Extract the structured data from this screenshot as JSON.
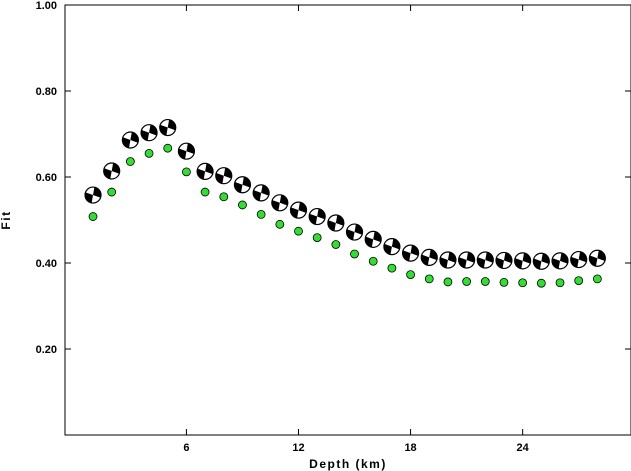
{
  "chart_data": {
    "type": "scatter",
    "title": "",
    "xlabel": "Depth (km)",
    "ylabel": "Fit",
    "xlim": [
      -0.5,
      29.8
    ],
    "ylim": [
      0.0,
      1.0
    ],
    "x_ticks": [
      6,
      12,
      18,
      24
    ],
    "x_tick_labels": [
      "6",
      "12",
      "18",
      "24"
    ],
    "y_ticks": [
      0.2,
      0.4,
      0.6,
      0.8,
      1.0
    ],
    "y_tick_labels": [
      "0.20",
      "0.40",
      "0.60",
      "0.80",
      "1.00"
    ],
    "grid": false,
    "legend": "none",
    "series": [
      {
        "marker": "focal-mechanism-beachball",
        "color": "#000000",
        "x": [
          1,
          2,
          3,
          4,
          5,
          6,
          7,
          8,
          9,
          10,
          11,
          12,
          13,
          14,
          15,
          16,
          17,
          18,
          19,
          20,
          21,
          22,
          23,
          24,
          25,
          26,
          27,
          28
        ],
        "y": [
          0.558,
          0.614,
          0.686,
          0.703,
          0.715,
          0.66,
          0.613,
          0.603,
          0.582,
          0.563,
          0.54,
          0.523,
          0.508,
          0.493,
          0.472,
          0.455,
          0.438,
          0.423,
          0.413,
          0.407,
          0.407,
          0.407,
          0.406,
          0.405,
          0.404,
          0.405,
          0.408,
          0.411
        ]
      },
      {
        "marker": "circle",
        "color": "#33dd33",
        "x": [
          1,
          2,
          3,
          4,
          5,
          6,
          7,
          8,
          9,
          10,
          11,
          12,
          13,
          14,
          15,
          16,
          17,
          18,
          19,
          20,
          21,
          22,
          23,
          24,
          25,
          26,
          27,
          28
        ],
        "y": [
          0.508,
          0.565,
          0.636,
          0.655,
          0.667,
          0.612,
          0.565,
          0.554,
          0.535,
          0.513,
          0.49,
          0.474,
          0.459,
          0.443,
          0.421,
          0.404,
          0.388,
          0.373,
          0.363,
          0.356,
          0.357,
          0.357,
          0.355,
          0.354,
          0.353,
          0.354,
          0.359,
          0.363
        ]
      }
    ]
  }
}
